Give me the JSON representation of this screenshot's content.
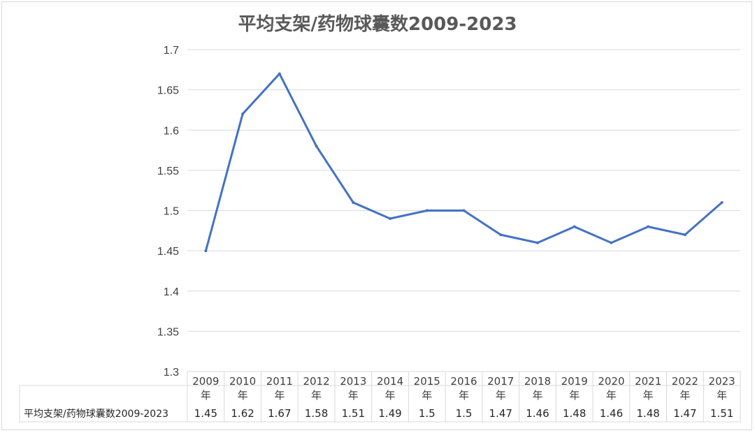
{
  "colors": {
    "line": "#4472c4",
    "grid": "#d9d9d9",
    "text": "#404040",
    "title": "#595959"
  },
  "chart_data": {
    "type": "line",
    "title": "平均支架/药物球囊数2009-2023",
    "categories": [
      "2009年",
      "2010年",
      "2011年",
      "2012年",
      "2013年",
      "2014年",
      "2015年",
      "2016年",
      "2017年",
      "2018年",
      "2019年",
      "2020年",
      "2021年",
      "2022年",
      "2023年"
    ],
    "category_lines": [
      [
        "2009",
        "年"
      ],
      [
        "2010",
        "年"
      ],
      [
        "2011",
        "年"
      ],
      [
        "2012",
        "年"
      ],
      [
        "2013",
        "年"
      ],
      [
        "2014",
        "年"
      ],
      [
        "2015",
        "年"
      ],
      [
        "2016",
        "年"
      ],
      [
        "2017",
        "年"
      ],
      [
        "2018",
        "年"
      ],
      [
        "2019",
        "年"
      ],
      [
        "2020",
        "年"
      ],
      [
        "2021",
        "年"
      ],
      [
        "2022",
        "年"
      ],
      [
        "2023",
        "年"
      ]
    ],
    "series": [
      {
        "name": "平均支架/药物球囊数2009-2023",
        "values": [
          1.45,
          1.62,
          1.67,
          1.58,
          1.51,
          1.49,
          1.5,
          1.5,
          1.47,
          1.46,
          1.48,
          1.46,
          1.48,
          1.47,
          1.51
        ],
        "labels": [
          "1.45",
          "1.62",
          "1.67",
          "1.58",
          "1.51",
          "1.49",
          "1.5",
          "1.5",
          "1.47",
          "1.46",
          "1.48",
          "1.46",
          "1.48",
          "1.47",
          "1.51"
        ]
      }
    ],
    "ylim": [
      1.3,
      1.7
    ],
    "yticks": [
      "1.3",
      "1.35",
      "1.4",
      "1.45",
      "1.5",
      "1.55",
      "1.6",
      "1.65",
      "1.7"
    ],
    "grid": true,
    "data_table": true,
    "legend": "none"
  }
}
